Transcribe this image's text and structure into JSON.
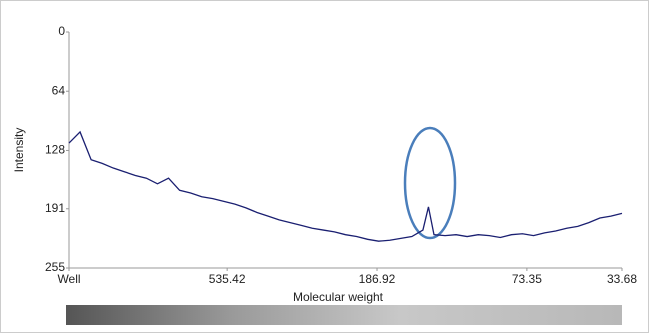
{
  "chart_data": {
    "type": "line",
    "y_label": "Intensity",
    "x_label": "Molecular weight",
    "ylim": [
      0,
      255
    ],
    "y_inverted": true,
    "yticks": [
      0,
      64,
      128,
      191,
      255
    ],
    "xlim": [
      0,
      100
    ],
    "xticks": [
      {
        "value": 0,
        "label": "Well"
      },
      {
        "value": 28.6,
        "label": "535.42"
      },
      {
        "value": 55.7,
        "label": "186.92"
      },
      {
        "value": 82.8,
        "label": "73.35"
      },
      {
        "value": 100,
        "label": "33.68"
      }
    ],
    "series": [
      {
        "color": "#1a1f71",
        "x": [
          0,
          2,
          4,
          6,
          8,
          10,
          12,
          14,
          16,
          18,
          20,
          22,
          24,
          26,
          28,
          30,
          32,
          34,
          36,
          38,
          40,
          42,
          44,
          46,
          48,
          50,
          52,
          54,
          56,
          58,
          60,
          62,
          64,
          65,
          66,
          68,
          70,
          72,
          74,
          76,
          78,
          80,
          82,
          84,
          86,
          88,
          90,
          92,
          94,
          96,
          98,
          100
        ],
        "values": [
          120,
          108,
          138,
          142,
          147,
          151,
          155,
          158,
          164,
          158,
          171,
          174,
          178,
          180,
          183,
          186,
          190,
          195,
          199,
          203,
          206,
          209,
          212,
          214,
          216,
          219,
          221,
          224,
          226,
          225,
          223,
          221,
          214,
          189,
          219,
          220,
          219,
          221,
          219,
          220,
          222,
          219,
          218,
          220,
          217,
          215,
          212,
          210,
          206,
          201,
          199,
          196
        ]
      }
    ]
  }
}
